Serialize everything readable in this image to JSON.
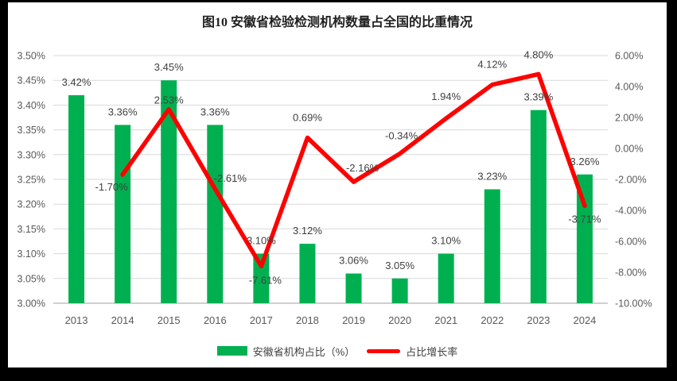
{
  "title": "图10 安徽省检验检测机构数量占全国的比重情况",
  "colors": {
    "bar": "#00B050",
    "line": "#FF0000",
    "axis_text": "#595959",
    "data_label_text": "#404040",
    "gridline": "#D9D9D9",
    "axis_line": "#BFBFBF",
    "title_text": "#1f1f1f",
    "surface_background": "#FFFFFF",
    "frame_background": "#000000"
  },
  "chart_data": {
    "type": "bar+line combo, dual axis",
    "title": "图10 安徽省检验检测机构数量占全国的比重情况",
    "categories": [
      "2013",
      "2014",
      "2015",
      "2016",
      "2017",
      "2018",
      "2019",
      "2020",
      "2021",
      "2022",
      "2023",
      "2024"
    ],
    "series": [
      {
        "name": "安徽省机构占比（%）",
        "type": "bar",
        "axis": "left",
        "color": "#00B050",
        "values": [
          3.42,
          3.36,
          3.45,
          3.36,
          3.1,
          3.12,
          3.06,
          3.05,
          3.1,
          3.23,
          3.39,
          3.26
        ],
        "labels": [
          "3.42%",
          "3.36%",
          "3.45%",
          "3.36%",
          "3.10%",
          "3.12%",
          "3.06%",
          "3.05%",
          "3.10%",
          "3.23%",
          "3.39%",
          "3.26%"
        ]
      },
      {
        "name": "占比增长率",
        "type": "line",
        "axis": "right",
        "color": "#FF0000",
        "values": [
          null,
          -1.7,
          2.53,
          -2.61,
          -7.61,
          0.69,
          -2.16,
          -0.34,
          1.94,
          4.12,
          4.8,
          -3.71
        ],
        "labels": [
          null,
          "-1.70%",
          "2.53%",
          "-2.61%",
          "-7.61%",
          "0.69%",
          "-2.16%",
          "-0.34%",
          "1.94%",
          "4.12%",
          "4.80%",
          "-3.71%"
        ],
        "label_dx": [
          0,
          -14,
          0,
          19,
          5,
          0,
          11,
          2,
          0,
          0,
          0,
          0
        ],
        "label_dy": [
          0,
          20,
          -7,
          -9,
          22,
          -21,
          -13,
          -18,
          -23,
          -21,
          -20,
          21
        ]
      }
    ],
    "left_axis": {
      "min": 3.0,
      "max": 3.5,
      "step": 0.05,
      "tick_labels": [
        "3.00%",
        "3.05%",
        "3.10%",
        "3.15%",
        "3.20%",
        "3.25%",
        "3.30%",
        "3.35%",
        "3.40%",
        "3.45%",
        "3.50%"
      ]
    },
    "right_axis": {
      "min": -10.0,
      "max": 6.0,
      "step": 2.0,
      "tick_labels": [
        "-10.00%",
        "-8.00%",
        "-6.00%",
        "-4.00%",
        "-2.00%",
        "0.00%",
        "2.00%",
        "4.00%",
        "6.00%"
      ]
    },
    "grid": true,
    "legend_position": "bottom"
  }
}
